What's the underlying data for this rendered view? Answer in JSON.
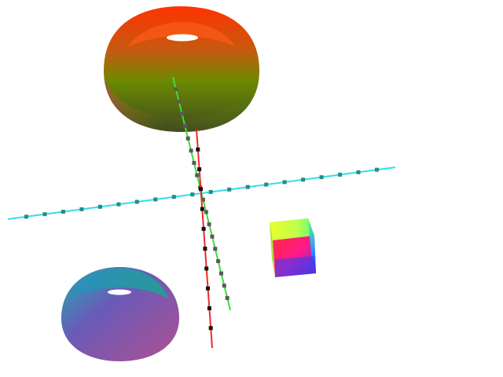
{
  "scene": {
    "background": "#ffffff",
    "axes": [
      {
        "id": "x-axis",
        "color": "#33dde6",
        "tick_color": "#2a8a8a"
      },
      {
        "id": "y-axis",
        "color": "#3ddc3d",
        "tick_color": "#5a5a5a"
      },
      {
        "id": "z-axis",
        "color": "#ee2a2a",
        "tick_color": "#111111"
      }
    ],
    "objects": [
      {
        "id": "upper-hemisphere",
        "shape": "hemisphere",
        "colors": [
          "#ff4d00",
          "#6b8a00",
          "#3a4a1a"
        ]
      },
      {
        "id": "lower-hemisphere",
        "shape": "hemisphere",
        "colors": [
          "#1aa6a6",
          "#7a4aa6",
          "#a64aa6"
        ]
      },
      {
        "id": "cube",
        "shape": "cube",
        "colors": [
          "#ff2a66",
          "#e6ff2a",
          "#2a2aff",
          "#2aff2a"
        ]
      }
    ]
  }
}
